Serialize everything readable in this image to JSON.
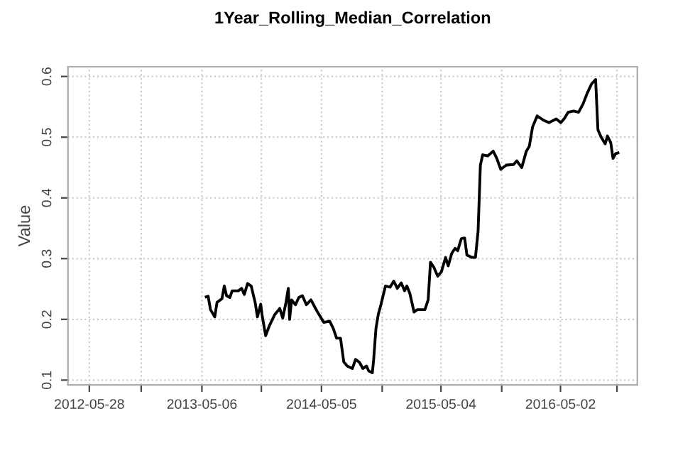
{
  "chart_data": {
    "type": "line",
    "title": "1Year_Rolling_Median_Correlation",
    "ylabel": "Value",
    "x": [
      "2013-05-19",
      "2013-05-25",
      "2013-06-01",
      "2013-06-14",
      "2013-06-21",
      "2013-07-06",
      "2013-07-13",
      "2013-07-20",
      "2013-07-30",
      "2013-08-06",
      "2013-08-25",
      "2013-09-04",
      "2013-09-12",
      "2013-09-22",
      "2013-10-03",
      "2013-10-15",
      "2013-10-22",
      "2013-11-01",
      "2013-11-05",
      "2013-11-16",
      "2013-11-27",
      "2013-12-14",
      "2013-12-29",
      "2014-01-07",
      "2014-01-17",
      "2014-01-24",
      "2014-01-28",
      "2014-02-03",
      "2014-02-15",
      "2014-02-25",
      "2014-03-08",
      "2014-03-20",
      "2014-04-03",
      "2014-04-13",
      "2014-04-23",
      "2014-05-12",
      "2014-05-30",
      "2014-06-10",
      "2014-06-20",
      "2014-07-02",
      "2014-07-12",
      "2014-07-23",
      "2014-08-07",
      "2014-08-17",
      "2014-08-29",
      "2014-09-08",
      "2014-09-19",
      "2014-09-26",
      "2014-10-07",
      "2014-10-11",
      "2014-10-18",
      "2014-10-25",
      "2014-11-02",
      "2014-11-16",
      "2014-11-30",
      "2014-12-11",
      "2014-12-22",
      "2015-01-03",
      "2015-01-13",
      "2015-01-20",
      "2015-01-29",
      "2015-02-11",
      "2015-02-21",
      "2015-03-16",
      "2015-03-26",
      "2015-04-02",
      "2015-04-12",
      "2015-04-24",
      "2015-05-05",
      "2015-05-18",
      "2015-05-26",
      "2015-06-06",
      "2015-06-16",
      "2015-06-24",
      "2015-07-05",
      "2015-07-15",
      "2015-07-22",
      "2015-08-06",
      "2015-08-17",
      "2015-08-25",
      "2015-09-01",
      "2015-09-08",
      "2015-09-23",
      "2015-10-10",
      "2015-10-21",
      "2015-11-02",
      "2015-11-19",
      "2015-12-11",
      "2015-12-21",
      "2016-01-05",
      "2016-01-19",
      "2016-01-28",
      "2016-02-07",
      "2016-02-21",
      "2016-03-11",
      "2016-03-28",
      "2016-04-19",
      "2016-05-03",
      "2016-05-14",
      "2016-05-25",
      "2016-06-11",
      "2016-06-26",
      "2016-07-10",
      "2016-07-22",
      "2016-08-05",
      "2016-08-17",
      "2016-08-24",
      "2016-09-03",
      "2016-09-15",
      "2016-09-22",
      "2016-10-02",
      "2016-10-09",
      "2016-10-17",
      "2016-10-24"
    ],
    "series": [
      {
        "color": "#000000",
        "values": [
          0.237,
          0.238,
          0.216,
          0.204,
          0.228,
          0.234,
          0.255,
          0.239,
          0.236,
          0.247,
          0.247,
          0.251,
          0.241,
          0.259,
          0.255,
          0.228,
          0.204,
          0.225,
          0.208,
          0.173,
          0.189,
          0.208,
          0.218,
          0.202,
          0.228,
          0.251,
          0.2,
          0.232,
          0.224,
          0.236,
          0.239,
          0.224,
          0.232,
          0.222,
          0.212,
          0.195,
          0.197,
          0.185,
          0.169,
          0.169,
          0.13,
          0.123,
          0.119,
          0.134,
          0.129,
          0.119,
          0.123,
          0.115,
          0.112,
          0.134,
          0.185,
          0.208,
          0.224,
          0.255,
          0.253,
          0.263,
          0.251,
          0.26,
          0.247,
          0.255,
          0.243,
          0.212,
          0.216,
          0.216,
          0.232,
          0.294,
          0.286,
          0.271,
          0.278,
          0.302,
          0.288,
          0.309,
          0.317,
          0.313,
          0.333,
          0.334,
          0.306,
          0.302,
          0.302,
          0.345,
          0.454,
          0.471,
          0.469,
          0.477,
          0.465,
          0.447,
          0.454,
          0.455,
          0.461,
          0.45,
          0.477,
          0.485,
          0.517,
          0.535,
          0.528,
          0.524,
          0.53,
          0.524,
          0.531,
          0.541,
          0.543,
          0.541,
          0.555,
          0.572,
          0.588,
          0.595,
          0.512,
          0.5,
          0.489,
          0.502,
          0.491,
          0.465,
          0.473,
          0.474
        ]
      }
    ],
    "xlim": [
      "2012-03-24",
      "2016-12-22"
    ],
    "xticks": [
      {
        "value": "2012-05-28",
        "label": "2012-05-28"
      },
      {
        "value": "2012-11-02",
        "label": null
      },
      {
        "value": "2013-05-06",
        "label": "2013-05-06"
      },
      {
        "value": "2013-11-03",
        "label": null
      },
      {
        "value": "2014-05-05",
        "label": "2014-05-05"
      },
      {
        "value": "2014-11-06",
        "label": null
      },
      {
        "value": "2015-05-04",
        "label": "2015-05-04"
      },
      {
        "value": "2015-11-05",
        "label": null
      },
      {
        "value": "2016-05-02",
        "label": "2016-05-02"
      },
      {
        "value": "2016-10-21",
        "label": null
      }
    ],
    "ylim": [
      0.092,
      0.616
    ],
    "yticks": [
      0.1,
      0.2,
      0.3,
      0.4,
      0.5,
      0.6
    ],
    "grid": true,
    "legend": false,
    "marker": "none",
    "line_style": "solid"
  }
}
